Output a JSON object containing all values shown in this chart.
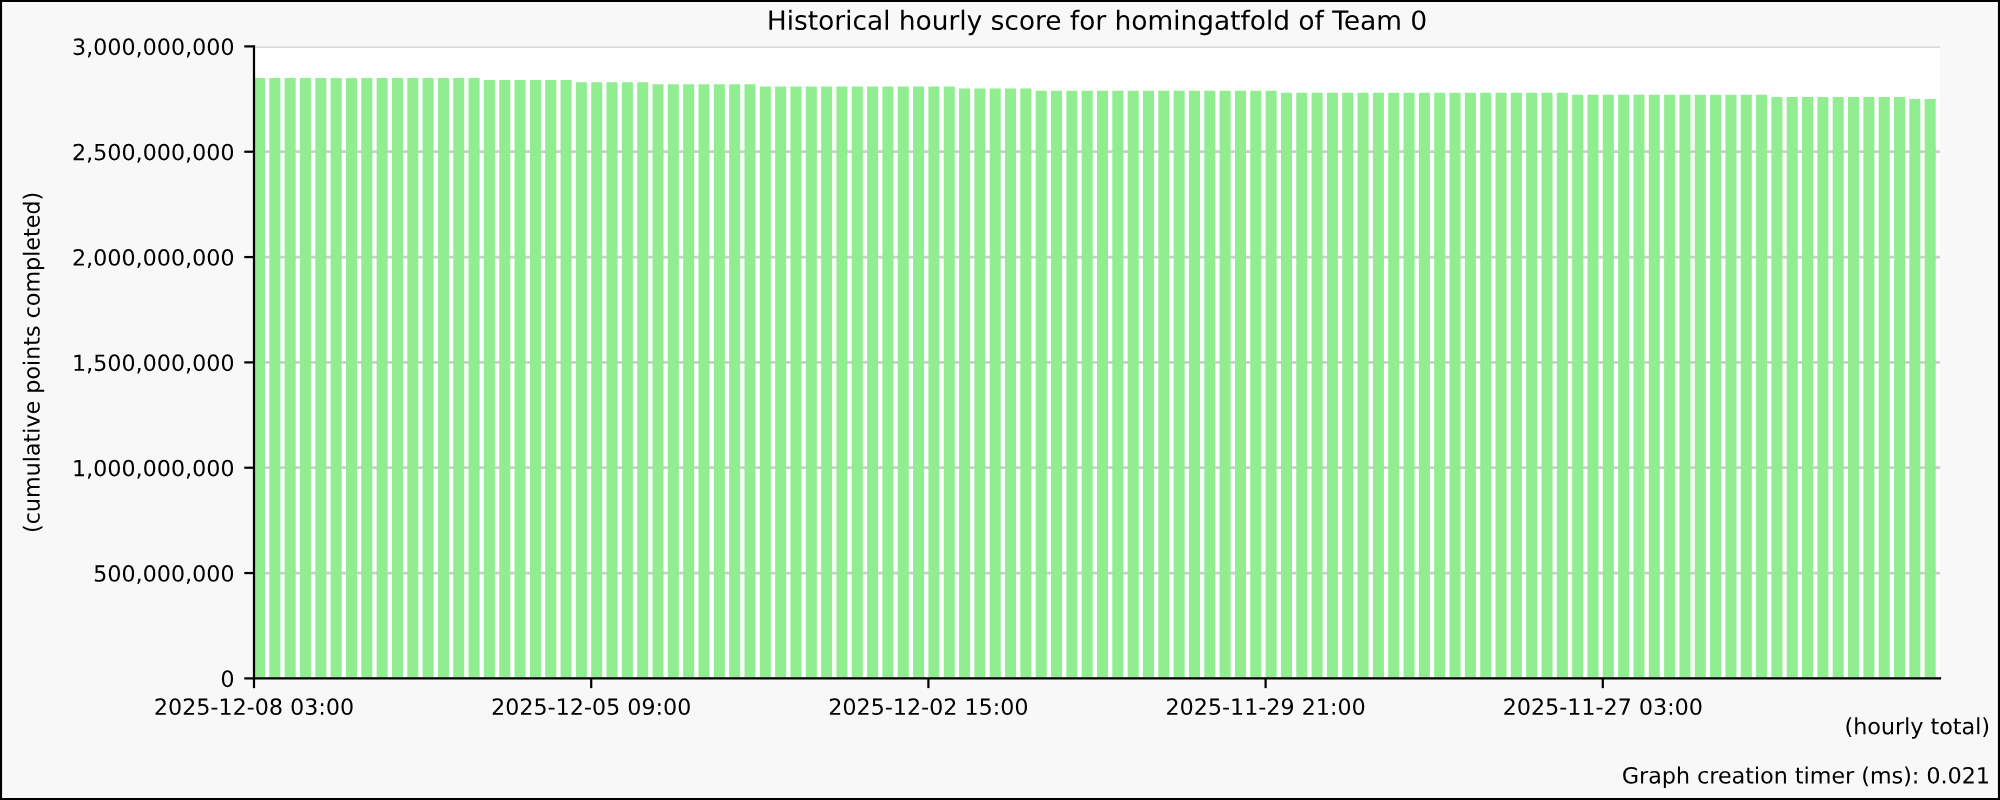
{
  "chart_data": {
    "type": "bar",
    "title": "Historical hourly score for homingatfold of Team 0",
    "xlabel": "(hourly total)",
    "ylabel": "(cumulative points completed)",
    "categories": [
      "2025-12-08 03:00",
      null,
      null,
      null,
      null,
      null,
      null,
      null,
      null,
      null,
      null,
      null,
      null,
      null,
      null,
      null,
      null,
      null,
      null,
      null,
      null,
      null,
      "2025-12-05 09:00",
      null,
      null,
      null,
      null,
      null,
      null,
      null,
      null,
      null,
      null,
      null,
      null,
      null,
      null,
      null,
      null,
      null,
      null,
      null,
      null,
      null,
      "2025-12-02 15:00",
      null,
      null,
      null,
      null,
      null,
      null,
      null,
      null,
      null,
      null,
      null,
      null,
      null,
      null,
      null,
      null,
      null,
      null,
      null,
      null,
      null,
      "2025-11-29 21:00",
      null,
      null,
      null,
      null,
      null,
      null,
      null,
      null,
      null,
      null,
      null,
      null,
      null,
      null,
      null,
      null,
      null,
      null,
      null,
      null,
      null,
      "2025-11-27 03:00",
      null,
      null,
      null,
      null,
      null,
      null,
      null,
      null,
      null,
      null,
      null,
      null,
      null,
      null,
      null,
      null,
      null,
      null,
      null,
      null,
      null
    ],
    "values": [
      2850000000,
      2850000000,
      2850000000,
      2850000000,
      2850000000,
      2850000000,
      2850000000,
      2850000000,
      2850000000,
      2850000000,
      2850000000,
      2850000000,
      2850000000,
      2850000000,
      2850000000,
      2840000000,
      2840000000,
      2840000000,
      2840000000,
      2840000000,
      2840000000,
      2830000000,
      2830000000,
      2830000000,
      2830000000,
      2830000000,
      2820000000,
      2820000000,
      2820000000,
      2820000000,
      2820000000,
      2820000000,
      2820000000,
      2810000000,
      2810000000,
      2810000000,
      2810000000,
      2810000000,
      2810000000,
      2810000000,
      2810000000,
      2810000000,
      2810000000,
      2810000000,
      2810000000,
      2810000000,
      2800000000,
      2800000000,
      2800000000,
      2800000000,
      2800000000,
      2790000000,
      2790000000,
      2790000000,
      2790000000,
      2790000000,
      2790000000,
      2790000000,
      2790000000,
      2790000000,
      2790000000,
      2790000000,
      2790000000,
      2790000000,
      2790000000,
      2790000000,
      2790000000,
      2780000000,
      2780000000,
      2780000000,
      2780000000,
      2780000000,
      2780000000,
      2780000000,
      2780000000,
      2780000000,
      2780000000,
      2780000000,
      2780000000,
      2780000000,
      2780000000,
      2780000000,
      2780000000,
      2780000000,
      2780000000,
      2780000000,
      2770000000,
      2770000000,
      2770000000,
      2770000000,
      2770000000,
      2770000000,
      2770000000,
      2770000000,
      2770000000,
      2770000000,
      2770000000,
      2770000000,
      2770000000,
      2760000000,
      2760000000,
      2760000000,
      2760000000,
      2760000000,
      2760000000,
      2760000000,
      2760000000,
      2760000000,
      2750000000,
      2750000000
    ],
    "color": "#90ee90",
    "ylim": [
      0,
      3000000000
    ],
    "yticks": [
      {
        "value": 0,
        "label": "0"
      },
      {
        "value": 500000000,
        "label": "500,000,000"
      },
      {
        "value": 1000000000,
        "label": "1,000,000,000"
      },
      {
        "value": 1500000000,
        "label": "1,500,000,000"
      },
      {
        "value": 2000000000,
        "label": "2,000,000,000"
      },
      {
        "value": 2500000000,
        "label": "2,500,000,000"
      },
      {
        "value": 3000000000,
        "label": "3,000,000,000"
      }
    ],
    "grid": "y",
    "annotations": [
      "Graph creation timer (ms): 0.021"
    ]
  }
}
